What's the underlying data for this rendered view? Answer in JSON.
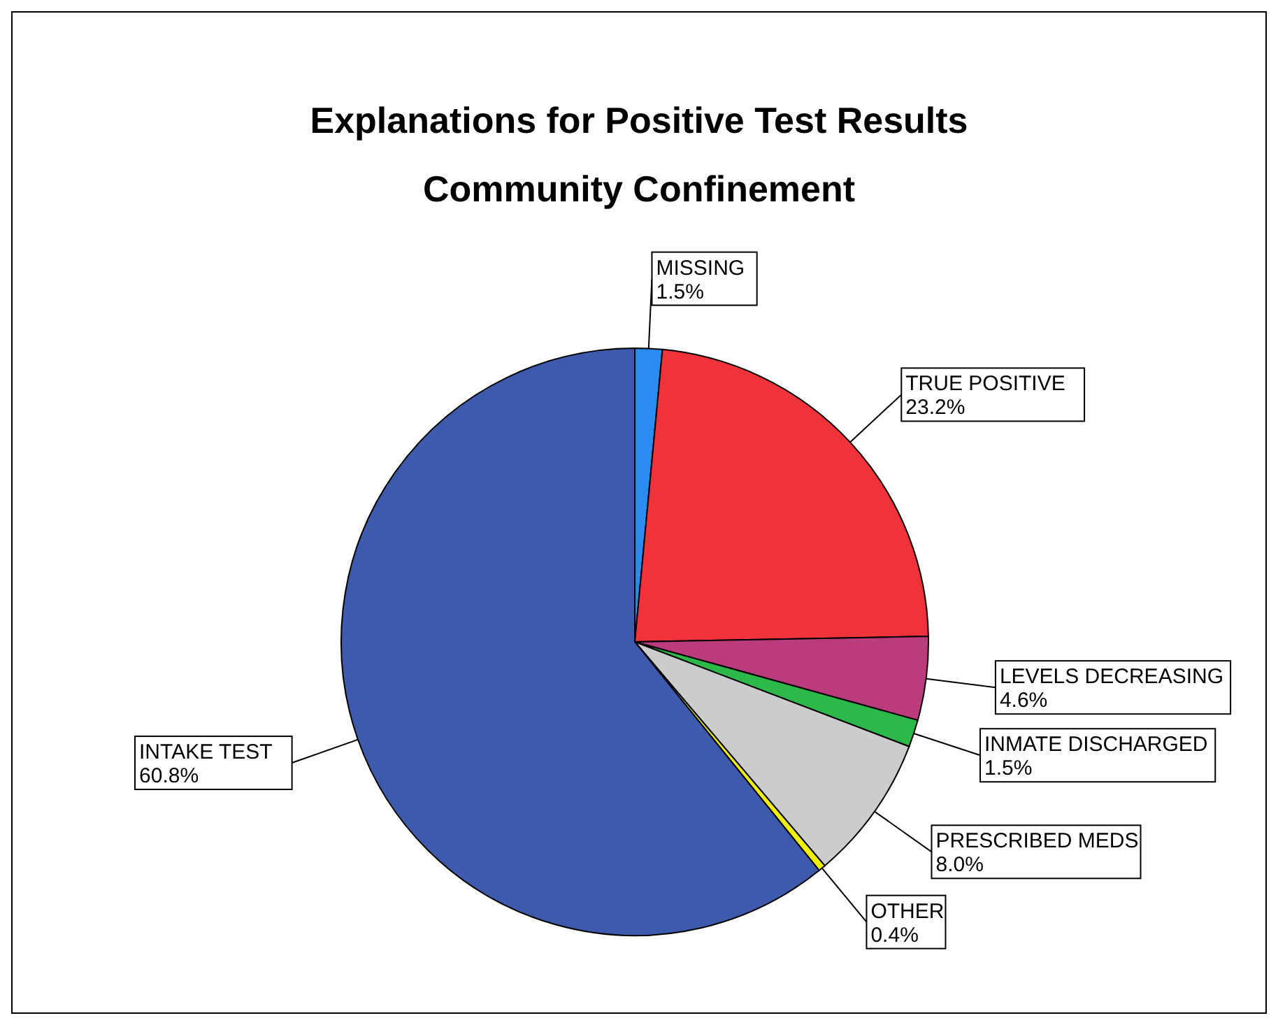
{
  "chart_data": {
    "type": "pie",
    "title": "Explanations for Positive Test Results",
    "subtitle": "Community Confinement",
    "categories": [
      "MISSING",
      "TRUE POSITIVE",
      "LEVELS DECREASING",
      "INMATE DISCHARGED",
      "PRESCRIBED MEDS",
      "OTHER",
      "INTAKE TEST"
    ],
    "values": [
      1.5,
      23.2,
      4.6,
      1.5,
      8.0,
      0.4,
      60.8
    ],
    "value_labels": [
      "1.5%",
      "23.2%",
      "4.6%",
      "1.5%",
      "8.0%",
      "0.4%",
      "60.8%"
    ],
    "colors": [
      "#2a8cf0",
      "#f0323a",
      "#bb3c7c",
      "#2db84a",
      "#cccccc",
      "#f0f000",
      "#3e5aad"
    ],
    "legend": false
  }
}
